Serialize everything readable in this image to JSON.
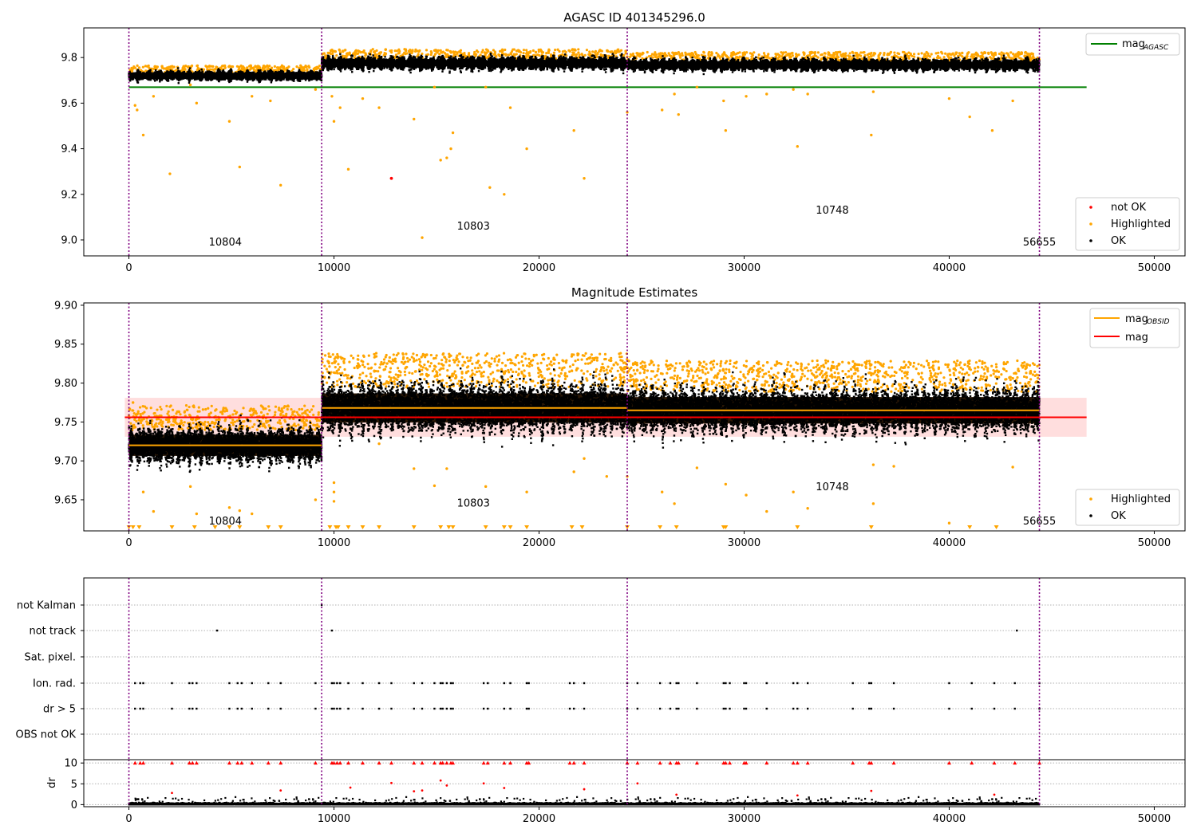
{
  "chart_data": [
    {
      "type": "scatter",
      "title": "AGASC ID 401345296.0",
      "xlim": [
        -2200,
        51500
      ],
      "ylim": [
        8.93,
        9.93
      ],
      "xticks": [
        0,
        10000,
        20000,
        30000,
        40000,
        50000
      ],
      "yticks": [
        9.0,
        9.2,
        9.4,
        9.6,
        9.8
      ],
      "segments": [
        {
          "x0": 0,
          "x1": 9400,
          "mean": 9.72,
          "amp": 0.016
        },
        {
          "x0": 9400,
          "x1": 24300,
          "mean": 9.775,
          "amp": 0.022
        },
        {
          "x0": 24300,
          "x1": 44400,
          "mean": 9.768,
          "amp": 0.02
        }
      ],
      "boundaries": [
        0,
        9400,
        24300,
        44400
      ],
      "obsid_labels": [
        {
          "text": "10804",
          "x": 4700,
          "y": 8.975
        },
        {
          "text": "10803",
          "x": 16800,
          "y": 9.045
        },
        {
          "text": "10748",
          "x": 34300,
          "y": 9.115
        },
        {
          "text": "56655",
          "x": 44400,
          "y": 8.975
        }
      ],
      "lines": [
        {
          "name": "mag_AGASC",
          "y": 9.67,
          "x0": 0,
          "x1": 46700,
          "color": "#008000"
        }
      ],
      "scatter_groups": {
        "not_ok": {
          "color": "#ff0000",
          "points": [
            [
              12800,
              9.27
            ]
          ]
        },
        "highlighted": {
          "color": "#ffa500",
          "points": [
            [
              150,
              9.74
            ],
            [
              300,
              9.59
            ],
            [
              400,
              9.57
            ],
            [
              700,
              9.46
            ],
            [
              1200,
              9.63
            ],
            [
              2000,
              9.29
            ],
            [
              3000,
              9.68
            ],
            [
              3300,
              9.6
            ],
            [
              4900,
              9.52
            ],
            [
              5400,
              9.32
            ],
            [
              6000,
              9.63
            ],
            [
              6900,
              9.61
            ],
            [
              7400,
              9.24
            ],
            [
              9100,
              9.66
            ],
            [
              9900,
              9.63
            ],
            [
              10000,
              9.52
            ],
            [
              10300,
              9.58
            ],
            [
              10700,
              9.31
            ],
            [
              11400,
              9.62
            ],
            [
              12200,
              9.58
            ],
            [
              13900,
              9.53
            ],
            [
              14300,
              9.01
            ],
            [
              14900,
              9.67
            ],
            [
              15200,
              9.35
            ],
            [
              15500,
              9.36
            ],
            [
              15700,
              9.4
            ],
            [
              15800,
              9.47
            ],
            [
              17400,
              9.67
            ],
            [
              17600,
              9.23
            ],
            [
              18300,
              9.2
            ],
            [
              18600,
              9.58
            ],
            [
              19400,
              9.4
            ],
            [
              21700,
              9.48
            ],
            [
              22200,
              9.27
            ],
            [
              24300,
              9.56
            ],
            [
              26000,
              9.57
            ],
            [
              26600,
              9.64
            ],
            [
              26800,
              9.55
            ],
            [
              27700,
              9.67
            ],
            [
              29000,
              9.61
            ],
            [
              29100,
              9.48
            ],
            [
              30100,
              9.63
            ],
            [
              31100,
              9.64
            ],
            [
              32400,
              9.66
            ],
            [
              32600,
              9.41
            ],
            [
              33100,
              9.64
            ],
            [
              36200,
              9.46
            ],
            [
              36300,
              9.65
            ],
            [
              40000,
              9.62
            ],
            [
              41000,
              9.54
            ],
            [
              42100,
              9.48
            ],
            [
              43100,
              9.61
            ]
          ]
        },
        "ok": {
          "color": "#000000"
        }
      },
      "legends": [
        {
          "position": "upper right",
          "entries": [
            "mag_AGASC"
          ]
        },
        {
          "position": "lower right",
          "entries": [
            "not OK",
            "Highlighted",
            "OK"
          ]
        }
      ]
    },
    {
      "type": "scatter",
      "title": "Magnitude Estimates",
      "xlim": [
        -2200,
        51500
      ],
      "ylim": [
        9.61,
        9.903
      ],
      "xticks": [
        0,
        10000,
        20000,
        30000,
        40000,
        50000
      ],
      "yticks": [
        9.65,
        9.7,
        9.75,
        9.8,
        9.85,
        9.9
      ],
      "segments": [
        {
          "x0": 0,
          "x1": 9400,
          "mean": 9.72,
          "amp": 0.016
        },
        {
          "x0": 9400,
          "x1": 24300,
          "mean": 9.768,
          "amp": 0.022
        },
        {
          "x0": 24300,
          "x1": 44400,
          "mean": 9.765,
          "amp": 0.02
        }
      ],
      "boundaries": [
        0,
        9400,
        24300,
        44400
      ],
      "obsid_labels": [
        {
          "text": "10804",
          "x": 4700,
          "y": 9.618
        },
        {
          "text": "10803",
          "x": 16800,
          "y": 9.641
        },
        {
          "text": "10748",
          "x": 34300,
          "y": 9.662
        },
        {
          "text": "56655",
          "x": 44400,
          "y": 9.618
        }
      ],
      "mag_obsid": [
        {
          "x0": 0,
          "x1": 9400,
          "y": 9.72
        },
        {
          "x0": 9400,
          "x1": 24300,
          "y": 9.768
        },
        {
          "x0": 24300,
          "x1": 44400,
          "y": 9.765
        }
      ],
      "mag": {
        "y": 9.756,
        "band": [
          9.731,
          9.781
        ],
        "x0": -200,
        "x1": 46700
      },
      "highlighted_points": [
        [
          200,
          9.775
        ],
        [
          400,
          9.76
        ],
        [
          700,
          9.66
        ],
        [
          1200,
          9.635
        ],
        [
          3000,
          9.667
        ],
        [
          3300,
          9.632
        ],
        [
          4900,
          9.64
        ],
        [
          5400,
          9.636
        ],
        [
          6000,
          9.632
        ],
        [
          9100,
          9.65
        ],
        [
          10000,
          9.672
        ],
        [
          10000,
          9.66
        ],
        [
          10000,
          9.648
        ],
        [
          12200,
          9.722
        ],
        [
          13900,
          9.69
        ],
        [
          14900,
          9.668
        ],
        [
          15500,
          9.69
        ],
        [
          17400,
          9.667
        ],
        [
          19400,
          9.66
        ],
        [
          21700,
          9.686
        ],
        [
          22200,
          9.703
        ],
        [
          23300,
          9.68
        ],
        [
          24300,
          9.68
        ],
        [
          26000,
          9.66
        ],
        [
          26600,
          9.645
        ],
        [
          27700,
          9.691
        ],
        [
          29100,
          9.67
        ],
        [
          30100,
          9.656
        ],
        [
          31100,
          9.635
        ],
        [
          32400,
          9.66
        ],
        [
          33100,
          9.639
        ],
        [
          36300,
          9.645
        ],
        [
          36300,
          9.695
        ],
        [
          37300,
          9.693
        ],
        [
          40000,
          9.62
        ],
        [
          43100,
          9.692
        ]
      ],
      "clipped_below_x": [
        0,
        200,
        500,
        2100,
        3200,
        4200,
        4900,
        5400,
        6800,
        7400,
        9800,
        10100,
        10200,
        10700,
        11400,
        12200,
        13900,
        15200,
        15600,
        15800,
        17400,
        18300,
        18600,
        19400,
        21600,
        22100,
        24300,
        25900,
        26700,
        29000,
        29100,
        32600,
        36200,
        41000,
        42300
      ],
      "legends": [
        {
          "position": "upper right",
          "entries": [
            "mag_OBSID",
            "mag"
          ]
        },
        {
          "position": "lower right",
          "entries": [
            "Highlighted",
            "OK"
          ]
        }
      ]
    },
    {
      "type": "scatter",
      "title": "",
      "xlim": [
        -2200,
        51500
      ],
      "xticks": [
        0,
        10000,
        20000,
        30000,
        40000,
        50000
      ],
      "flag_rows": [
        "not Kalman",
        "not track",
        "Sat. pixel.",
        "Ion. rad.",
        "dr > 5",
        "OBS not OK"
      ],
      "flag_points": {
        "not Kalman": [
          9400
        ],
        "not track": [
          4300,
          9900,
          43300
        ],
        "Sat. pixel.": [],
        "Ion. rad.": [
          300,
          550,
          700,
          2100,
          2950,
          3100,
          3300,
          4900,
          5300,
          5500,
          6000,
          6800,
          7400,
          9100,
          9900,
          10000,
          10150,
          10300,
          10700,
          11400,
          12200,
          12800,
          13900,
          14300,
          14900,
          15200,
          15300,
          15500,
          15700,
          15800,
          17300,
          17500,
          18300,
          18600,
          19400,
          19500,
          21500,
          21700,
          22200,
          24300,
          24800,
          25900,
          26400,
          26700,
          26800,
          27700,
          29000,
          29100,
          29300,
          30000,
          30100,
          31100,
          32400,
          32600,
          33100,
          35300,
          36100,
          36200,
          37300,
          40000,
          41100,
          42200,
          43200,
          44400
        ],
        "dr > 5": [
          300,
          550,
          700,
          2100,
          2950,
          3100,
          3300,
          4900,
          5300,
          5500,
          6000,
          6800,
          7400,
          9100,
          9900,
          10000,
          10150,
          10300,
          10700,
          11400,
          12200,
          12800,
          13900,
          14300,
          14900,
          15200,
          15300,
          15500,
          15700,
          15800,
          17300,
          17500,
          18300,
          18600,
          19400,
          19500,
          21500,
          21700,
          22200,
          24300,
          24800,
          25900,
          26400,
          26700,
          26800,
          27700,
          29000,
          29100,
          29300,
          30000,
          30100,
          31100,
          32400,
          32600,
          33100,
          35300,
          36100,
          36200,
          37300,
          40000,
          41100,
          42200,
          43200,
          44400
        ],
        "OBS not OK": []
      },
      "dr_panel": {
        "ylabel": "dr",
        "ylim": [
          -0.5,
          10.8
        ],
        "yticks": [
          0,
          5,
          10
        ],
        "mid_points": [
          [
            2100,
            2.8
          ],
          [
            7400,
            3.4
          ],
          [
            10800,
            4.1
          ],
          [
            12800,
            5.2
          ],
          [
            13900,
            3.2
          ],
          [
            14300,
            3.4
          ],
          [
            15200,
            5.8
          ],
          [
            15500,
            4.6
          ],
          [
            17300,
            5.1
          ],
          [
            18300,
            4.0
          ],
          [
            22200,
            3.7
          ],
          [
            24800,
            5.1
          ],
          [
            26700,
            2.4
          ],
          [
            32600,
            2.2
          ],
          [
            36200,
            3.3
          ],
          [
            42200,
            2.4
          ]
        ]
      },
      "boundaries": [
        0,
        9400,
        24300,
        44400
      ]
    }
  ],
  "legend_text": {
    "mag_agasc": "mag",
    "mag_agasc_sub": "AGASC",
    "not_ok": "not OK",
    "highlighted": "Highlighted",
    "ok": "OK",
    "mag_obsid": "mag",
    "mag_obsid_sub": "OBSID",
    "mag": "mag"
  },
  "colors": {
    "ok": "#000000",
    "highlighted": "#ffa500",
    "not_ok": "#ff0000",
    "mag_agasc": "#008000",
    "mag_obsid": "#ffa500",
    "mag": "#ff0000",
    "mag_band": "#ffdede",
    "boundary": "#800080",
    "grid": "#b0b0b0",
    "run_band": "#2b1806"
  }
}
